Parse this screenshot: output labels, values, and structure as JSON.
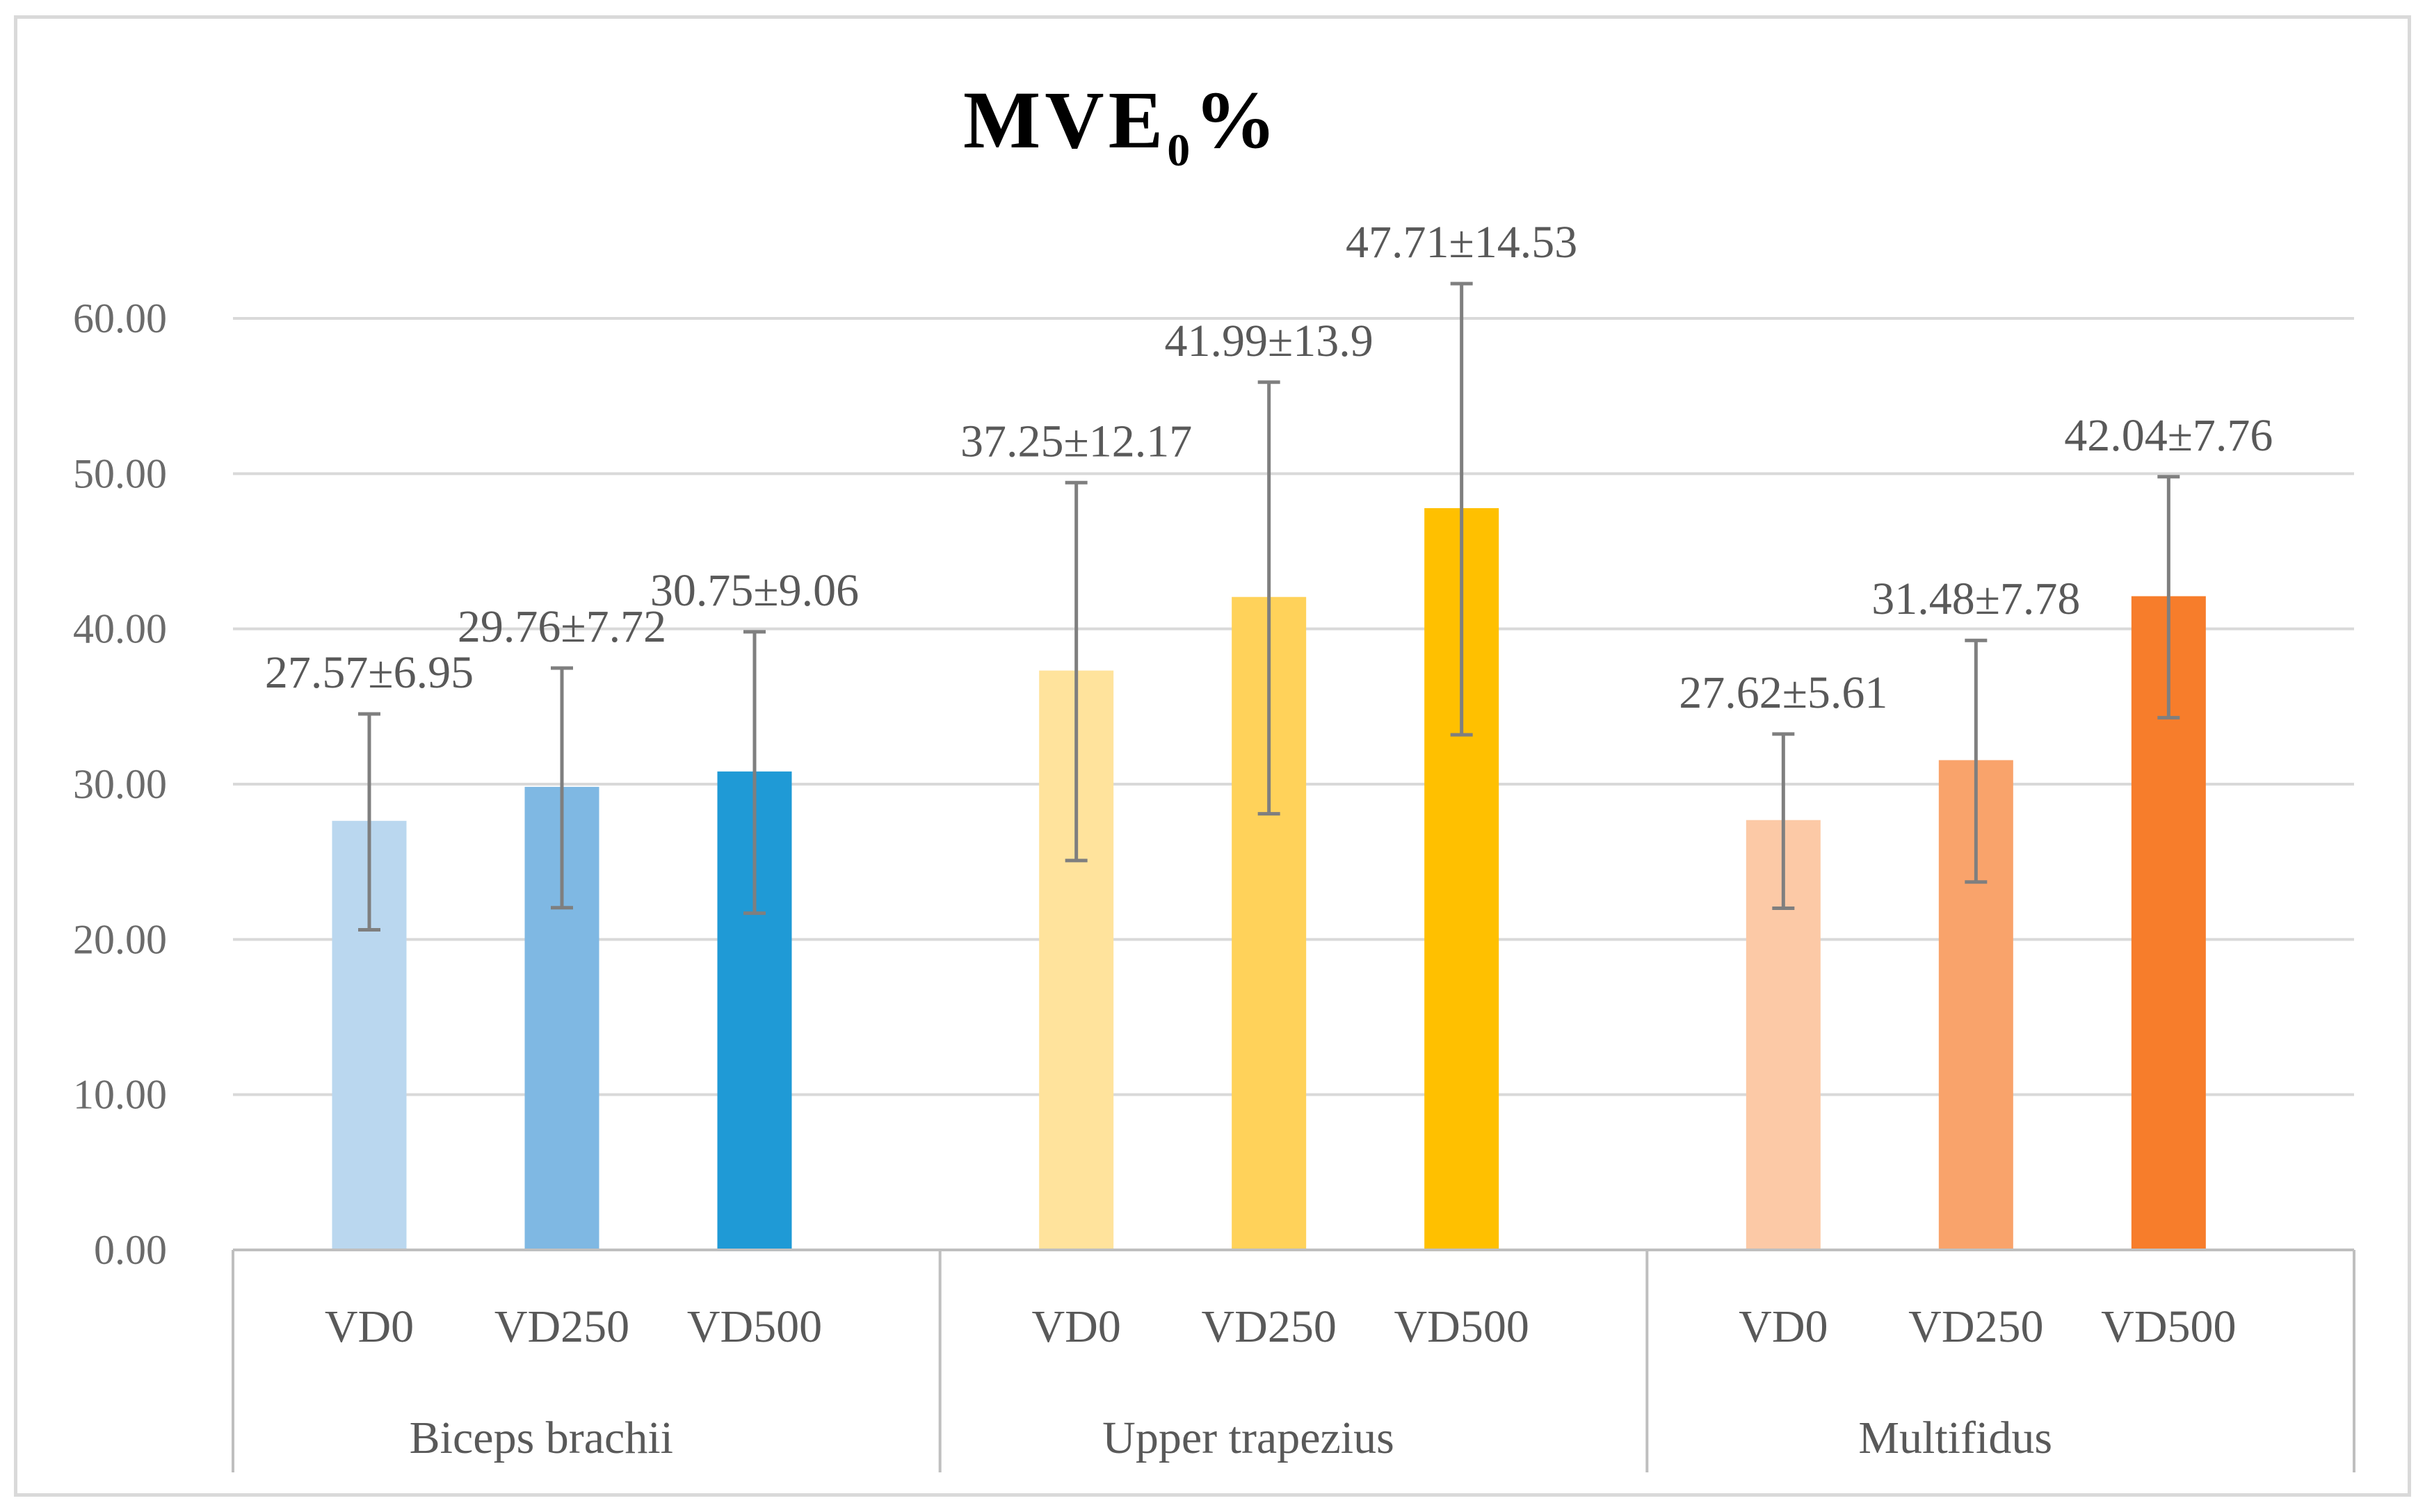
{
  "chart_data": {
    "type": "bar",
    "title": "MVE",
    "title_subscript": "0",
    "title_suffix": "%",
    "ylim": [
      0,
      60
    ],
    "yticks": [
      "0.00",
      "10.00",
      "20.00",
      "30.00",
      "40.00",
      "50.00",
      "60.00"
    ],
    "ytick_values": [
      0,
      10,
      20,
      30,
      40,
      50,
      60
    ],
    "grid": true,
    "groups": [
      {
        "name": "Biceps brachii",
        "bars": [
          {
            "label": "VD0",
            "value": 27.57,
            "error": 6.95,
            "data_label": "27.57±6.95",
            "color": "#bad7ef"
          },
          {
            "label": "VD250",
            "value": 29.76,
            "error": 7.72,
            "data_label": "29.76±7.72",
            "color": "#7fb8e3"
          },
          {
            "label": "VD500",
            "value": 30.75,
            "error": 9.06,
            "data_label": "30.75±9.06",
            "color": "#1f9ad6"
          }
        ]
      },
      {
        "name": "Upper trapezius",
        "bars": [
          {
            "label": "VD0",
            "value": 37.25,
            "error": 12.17,
            "data_label": "37.25±12.17",
            "color": "#ffe39c"
          },
          {
            "label": "VD250",
            "value": 41.99,
            "error": 13.9,
            "data_label": "41.99±13.9",
            "color": "#ffd25a"
          },
          {
            "label": "VD500",
            "value": 47.71,
            "error": 14.53,
            "data_label": "47.71±14.53",
            "color": "#ffc000"
          }
        ]
      },
      {
        "name": "Multifidus",
        "bars": [
          {
            "label": "VD0",
            "value": 27.62,
            "error": 5.61,
            "data_label": "27.62±5.61",
            "color": "#fcc9a6"
          },
          {
            "label": "VD250",
            "value": 31.48,
            "error": 7.78,
            "data_label": "31.48±7.78",
            "color": "#f9a36b"
          },
          {
            "label": "VD500",
            "value": 42.04,
            "error": 7.76,
            "data_label": "42.04±7.76",
            "color": "#f77d2b"
          }
        ]
      }
    ]
  }
}
